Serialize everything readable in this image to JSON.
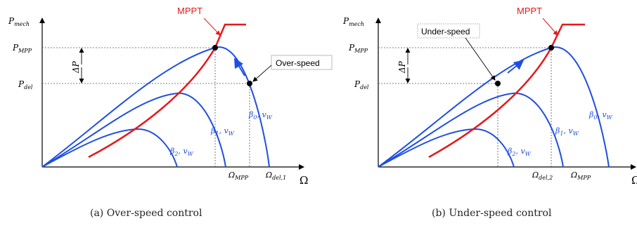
{
  "colors": {
    "curve": "#1f4fe0",
    "mppt": "#e4191c",
    "axis": "#000000"
  },
  "panel_a": {
    "y_axis_main": "P",
    "y_axis_sub": "mech",
    "x_axis": "Ω",
    "p_mpp_main": "P",
    "p_mpp_sub": "MPP",
    "p_del_main": "P",
    "p_del_sub": "del",
    "delta_p": "ΔP",
    "mppt_label": "MPPT",
    "callout": "Over-speed",
    "tick1_main": "Ω",
    "tick1_sub": "MPP",
    "tick2_main": "Ω",
    "tick2_sub": "del,1",
    "curve0_main": "β",
    "curve0_sub": "0",
    "curve0_rest": ", v",
    "curve0_rest_sub": "W",
    "curve1_main": "β",
    "curve1_sub": "1",
    "curve1_rest": ", v",
    "curve1_rest_sub": "W",
    "curve2_main": "β",
    "curve2_sub": "2",
    "curve2_rest": ", v",
    "curve2_rest_sub": "W",
    "caption": "(a) Over-speed control"
  },
  "panel_b": {
    "y_axis_main": "P",
    "y_axis_sub": "mech",
    "x_axis": "Ω",
    "p_mpp_main": "P",
    "p_mpp_sub": "MPP",
    "p_del_main": "P",
    "p_del_sub": "del",
    "delta_p": "ΔP",
    "mppt_label": "MPPT",
    "callout": "Under-speed",
    "tick1_main": "Ω",
    "tick1_sub": "del,2",
    "tick2_main": "Ω",
    "tick2_sub": "MPP",
    "curve0_main": "β",
    "curve0_sub": "0",
    "curve0_rest": ", v",
    "curve0_rest_sub": "W",
    "curve1_main": "β",
    "curve1_sub": "1",
    "curve1_rest": ", v",
    "curve1_rest_sub": "W",
    "curve2_main": "β",
    "curve2_sub": "2",
    "curve2_rest": ", v",
    "curve2_rest_sub": "W",
    "caption": "(b) Under-speed control"
  }
}
